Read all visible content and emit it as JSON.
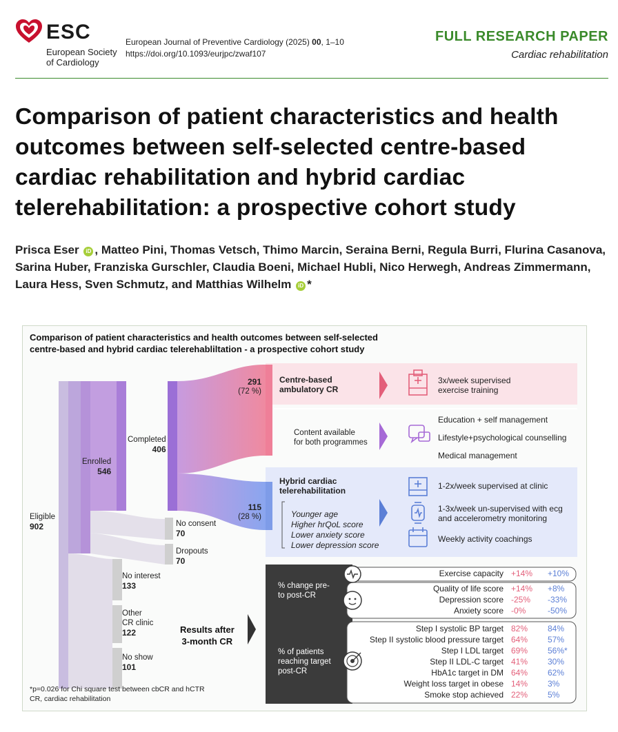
{
  "header": {
    "esc_name": "ESC",
    "esc_sub_1": "European Society",
    "esc_sub_2": "of Cardiology",
    "journal_name": "European Journal of Preventive Cardiology (2025)",
    "journal_volume": "00",
    "journal_pages": ", 1–10",
    "doi": "https://doi.org/10.1093/eurjpc/zwaf107",
    "paper_type": "FULL RESEARCH PAPER",
    "section": "Cardiac rehabilitation"
  },
  "title": "Comparison of patient characteristics and health outcomes between self-selected centre-based cardiac rehabilitation and hybrid cardiac telerehabilitation: a prospective cohort study",
  "authors": {
    "a1": "Prisca Eser",
    "a2": ", Matteo Pini, Thomas Vetsch, Thimo Marcin, Seraina Berni, Regula Burri, Flurina Casanova, Sarina Huber, Franziska Gurschler, Claudia Boeni, Michael Hubli, Nico Herwegh, Andreas Zimmermann, Laura Hess, Sven Schmutz, and Matthias Wilhelm",
    "star": "*",
    "orcid_mark": "iD"
  },
  "abstract": {
    "title_1": "Comparison of patient characteristics and health outcomes between self-selected",
    "title_2": "centre-based and hybrid cardiac telerehabliltation - a prospective cohort study",
    "flow": {
      "eligible_label": "Eligible",
      "eligible_n": "902",
      "enrolled_label": "Enrolled",
      "enrolled_n": "546",
      "completed_label": "Completed",
      "completed_n": "406",
      "no_consent_label": "No consent",
      "no_consent_n": "70",
      "dropouts_label": "Dropouts",
      "dropouts_n": "70",
      "no_interest_label": "No interest",
      "no_interest_n": "133",
      "other_label_1": "Other",
      "other_label_2": "CR clinic",
      "other_n": "122",
      "no_show_label": "No show",
      "no_show_n": "101",
      "cb_n": "291",
      "cb_pct": "(72 %)",
      "h_n": "115",
      "h_pct": "(28 %)"
    },
    "cb": {
      "name_1": "Centre-based",
      "name_2": "ambulatory CR",
      "feature_1": "3x/week supervised",
      "feature_2": "exercise training"
    },
    "shared": {
      "label_1": "Content available",
      "label_2": "for both programmes",
      "items": [
        "Education + self management",
        "Lifestyle+psychological counselling",
        "Medical management"
      ]
    },
    "hybrid": {
      "name_1": "Hybrid cardiac",
      "name_2": "telerehabilitation",
      "traits": [
        "Younger age",
        "Higher hrQoL score",
        "Lower anxiety score",
        "Lower depression score"
      ],
      "feature_1": "1-2x/week supervised at clinic",
      "feature_2a": "1-3x/week un-supervised with ecg",
      "feature_2b": "and accelerometry monitoring",
      "feature_3": "Weekly activity coachings"
    },
    "results": {
      "label_1": "Results after",
      "label_2": "3-month CR",
      "change_label_1": "% change pre-",
      "change_label_2": "to post-CR",
      "target_label_1": "% of patients",
      "target_label_2": "reaching target",
      "target_label_3": "post-CR",
      "change_rows": [
        {
          "label": "Exercise capacity",
          "cb": "+14%",
          "h": "+10%"
        },
        {
          "label": "Quality of life score",
          "cb": "+14%",
          "h": "+8%"
        },
        {
          "label": "Depression score",
          "cb": "-25%",
          "h": "-33%"
        },
        {
          "label": "Anxiety score",
          "cb": "-0%",
          "h": "-50%"
        }
      ],
      "target_rows": [
        {
          "label": "Step I systolic BP target",
          "cb": "82%",
          "h": "84%"
        },
        {
          "label": "Step II systolic blood pressure target",
          "cb": "64%",
          "h": "57%"
        },
        {
          "label": "Step I LDL target",
          "cb": "69%",
          "h": "56%*"
        },
        {
          "label": "Step II LDL-C target",
          "cb": "41%",
          "h": "30%"
        },
        {
          "label": "HbA1c target in DM",
          "cb": "64%",
          "h": "62%"
        },
        {
          "label": "Weight loss target in obese",
          "cb": "14%",
          "h": "3%"
        },
        {
          "label": "Smoke stop achieved",
          "cb": "22%",
          "h": "5%"
        }
      ]
    },
    "footnote_1": "*p=0.026 for Chi square test between cbCR and hCTR",
    "footnote_2": "CR, cardiac rehabilitation"
  },
  "colors": {
    "brand_green": "#3a8a2a",
    "esc_red": "#c8102e",
    "cb_color": "#e35f7a",
    "hybrid_color": "#5b7fd6"
  }
}
